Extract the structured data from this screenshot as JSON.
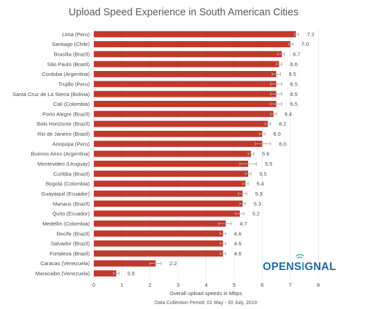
{
  "chart_data": {
    "type": "bar",
    "orientation": "horizontal",
    "title": "Upload Speed Experience in South American Cities",
    "xlabel": "Overall upload speeds in Mbps",
    "subtitle": "Data Collection Period: 01 May - 30 July, 2019",
    "xlim": [
      0,
      8
    ],
    "xticks": [
      "0",
      "1",
      "2",
      "3",
      "4",
      "5",
      "6",
      "7",
      "8"
    ],
    "grid": true,
    "bar_color": "#c0392b",
    "error_bar_color": "#aaaaaa",
    "categories": [
      "Lima (Peru)",
      "Santiago (Chile)",
      "Brasília (Brazil)",
      "São Paulo (Brazil)",
      "Cordoba (Argentina)",
      "Trujillo (Peru)",
      "Santa Cruz de La Sierra (Bolivia)",
      "Cali (Colombia)",
      "Porto Alegre (Brazil)",
      "Belo Horizonte (Brazil)",
      "Rio de Janeiro (Brazil)",
      "Arequipa (Peru)",
      "Buenos Aires (Argentina)",
      "Montevideo (Uruguay)",
      "Curitiba (Brazil)",
      "Bogotá (Colombia)",
      "Guayaquil (Ecuador)",
      "Manaus (Brazil)",
      "Quito (Ecuador)",
      "Medellín (Colombia)",
      "Recife (Brazil)",
      "Salvador (Brazil)",
      "Fortaleza (Brazil)",
      "Caracas (Venezuela)",
      "Maracaibo (Venezuela)"
    ],
    "values": [
      7.2,
      7.0,
      6.7,
      6.6,
      6.5,
      6.5,
      6.5,
      6.5,
      6.4,
      6.2,
      6.0,
      6.0,
      5.6,
      5.5,
      5.5,
      5.4,
      5.3,
      5.3,
      5.2,
      4.7,
      4.6,
      4.6,
      4.6,
      2.2,
      0.8
    ],
    "value_labels": [
      "7.2",
      "7.0",
      "6.7",
      "6.6",
      "6.5",
      "6.5",
      "6.5",
      "6.5",
      "6.4",
      "6.2",
      "6.0",
      "6.0",
      "5.6",
      "5.5",
      "5.5",
      "5.4",
      "5.3",
      "5.3",
      "5.2",
      "4.7",
      "4.6",
      "4.6",
      "4.6",
      "2.2",
      "0.8"
    ],
    "error_low": [
      7.15,
      6.95,
      6.55,
      6.5,
      6.35,
      6.3,
      6.3,
      6.3,
      6.3,
      6.1,
      5.9,
      5.75,
      5.5,
      5.2,
      5.4,
      5.3,
      5.15,
      5.2,
      5.05,
      4.45,
      4.5,
      4.5,
      4.5,
      2.0,
      0.7
    ],
    "error_high": [
      7.3,
      7.1,
      6.8,
      6.7,
      6.65,
      6.7,
      6.7,
      6.7,
      6.5,
      6.3,
      6.1,
      6.3,
      5.7,
      5.8,
      5.6,
      5.5,
      5.45,
      5.4,
      5.35,
      4.9,
      4.7,
      4.7,
      4.7,
      2.4,
      0.9
    ]
  },
  "logo": {
    "text_prefix": "OPEN",
    "text_suffix": "GNAL",
    "colors": {
      "open": "#1d6aa3",
      "gnal": "#2ba3c5"
    }
  }
}
